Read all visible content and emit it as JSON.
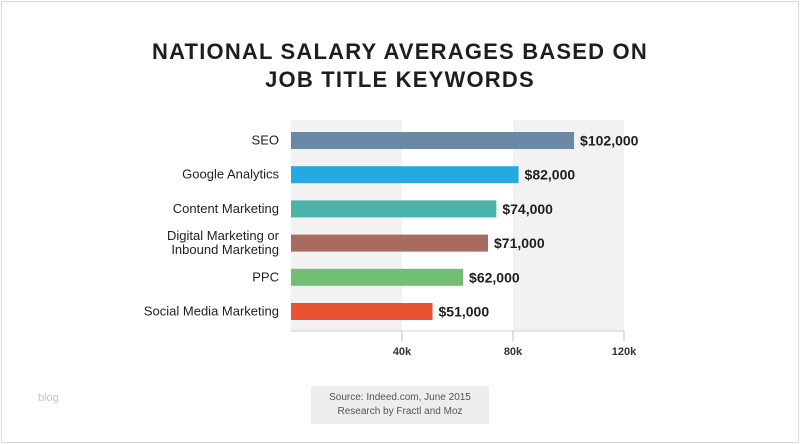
{
  "title": {
    "line1": "NATIONAL SALARY AVERAGES BASED ON",
    "line2": "JOB TITLE KEYWORDS"
  },
  "source": {
    "line1": "Source: Indeed.com, June 2015",
    "line2": "Research by Fractl and Moz"
  },
  "watermark": "blog",
  "chart_data": {
    "type": "bar",
    "orientation": "horizontal",
    "categories": [
      "SEO",
      "Google Analytics",
      "Content Marketing",
      "Digital Marketing or\nInbound Marketing",
      "PPC",
      "Social Media Marketing"
    ],
    "values": [
      102000,
      82000,
      74000,
      71000,
      62000,
      51000
    ],
    "value_labels": [
      "$102,000",
      "$82,000",
      "$74,000",
      "$71,000",
      "$62,000",
      "$51,000"
    ],
    "colors": [
      "#6b89a4",
      "#26a9e0",
      "#4bb3a9",
      "#a86b62",
      "#72bf73",
      "#e85230"
    ],
    "xlim": [
      0,
      120000
    ],
    "xticks": [
      40000,
      80000,
      120000
    ],
    "xtick_labels": [
      "40k",
      "80k",
      "120k"
    ],
    "grid": true
  }
}
